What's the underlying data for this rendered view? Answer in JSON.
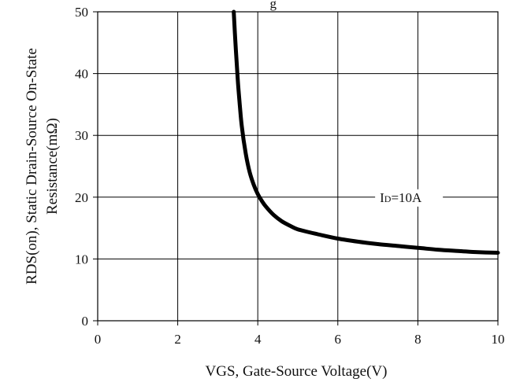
{
  "chart_data": {
    "type": "line",
    "title_fragment": "g",
    "xlabel": "VGS, Gate-Source Voltage(V)",
    "ylabel_line1": "RDS(on), Static Drain-Source On-State",
    "ylabel_line2": "Resistance(mΩ)",
    "xlim": [
      0,
      10
    ],
    "ylim": [
      0,
      50
    ],
    "x_ticks": [
      0,
      2,
      4,
      6,
      8,
      10
    ],
    "y_ticks": [
      0,
      10,
      20,
      30,
      40,
      50
    ],
    "x_tick_labels": [
      "0",
      "2",
      "4",
      "6",
      "8",
      "10"
    ],
    "y_tick_labels": [
      "0",
      "10",
      "20",
      "30",
      "40",
      "50"
    ],
    "grid": true,
    "series": [
      {
        "name": "ID=10A",
        "color": "#000000",
        "x": [
          3.4,
          3.45,
          3.5,
          3.55,
          3.6,
          3.7,
          3.8,
          3.9,
          4.0,
          4.1,
          4.2,
          4.4,
          4.6,
          4.8,
          5.0,
          5.5,
          6.0,
          6.5,
          7.0,
          7.5,
          8.0,
          8.5,
          9.0,
          9.5,
          10.0
        ],
        "y": [
          50,
          44,
          39,
          35,
          31.5,
          27,
          24,
          22,
          20.5,
          19.4,
          18.5,
          17.1,
          16.1,
          15.4,
          14.8,
          14.0,
          13.3,
          12.8,
          12.4,
          12.1,
          11.8,
          11.5,
          11.3,
          11.1,
          11.0
        ]
      }
    ]
  }
}
